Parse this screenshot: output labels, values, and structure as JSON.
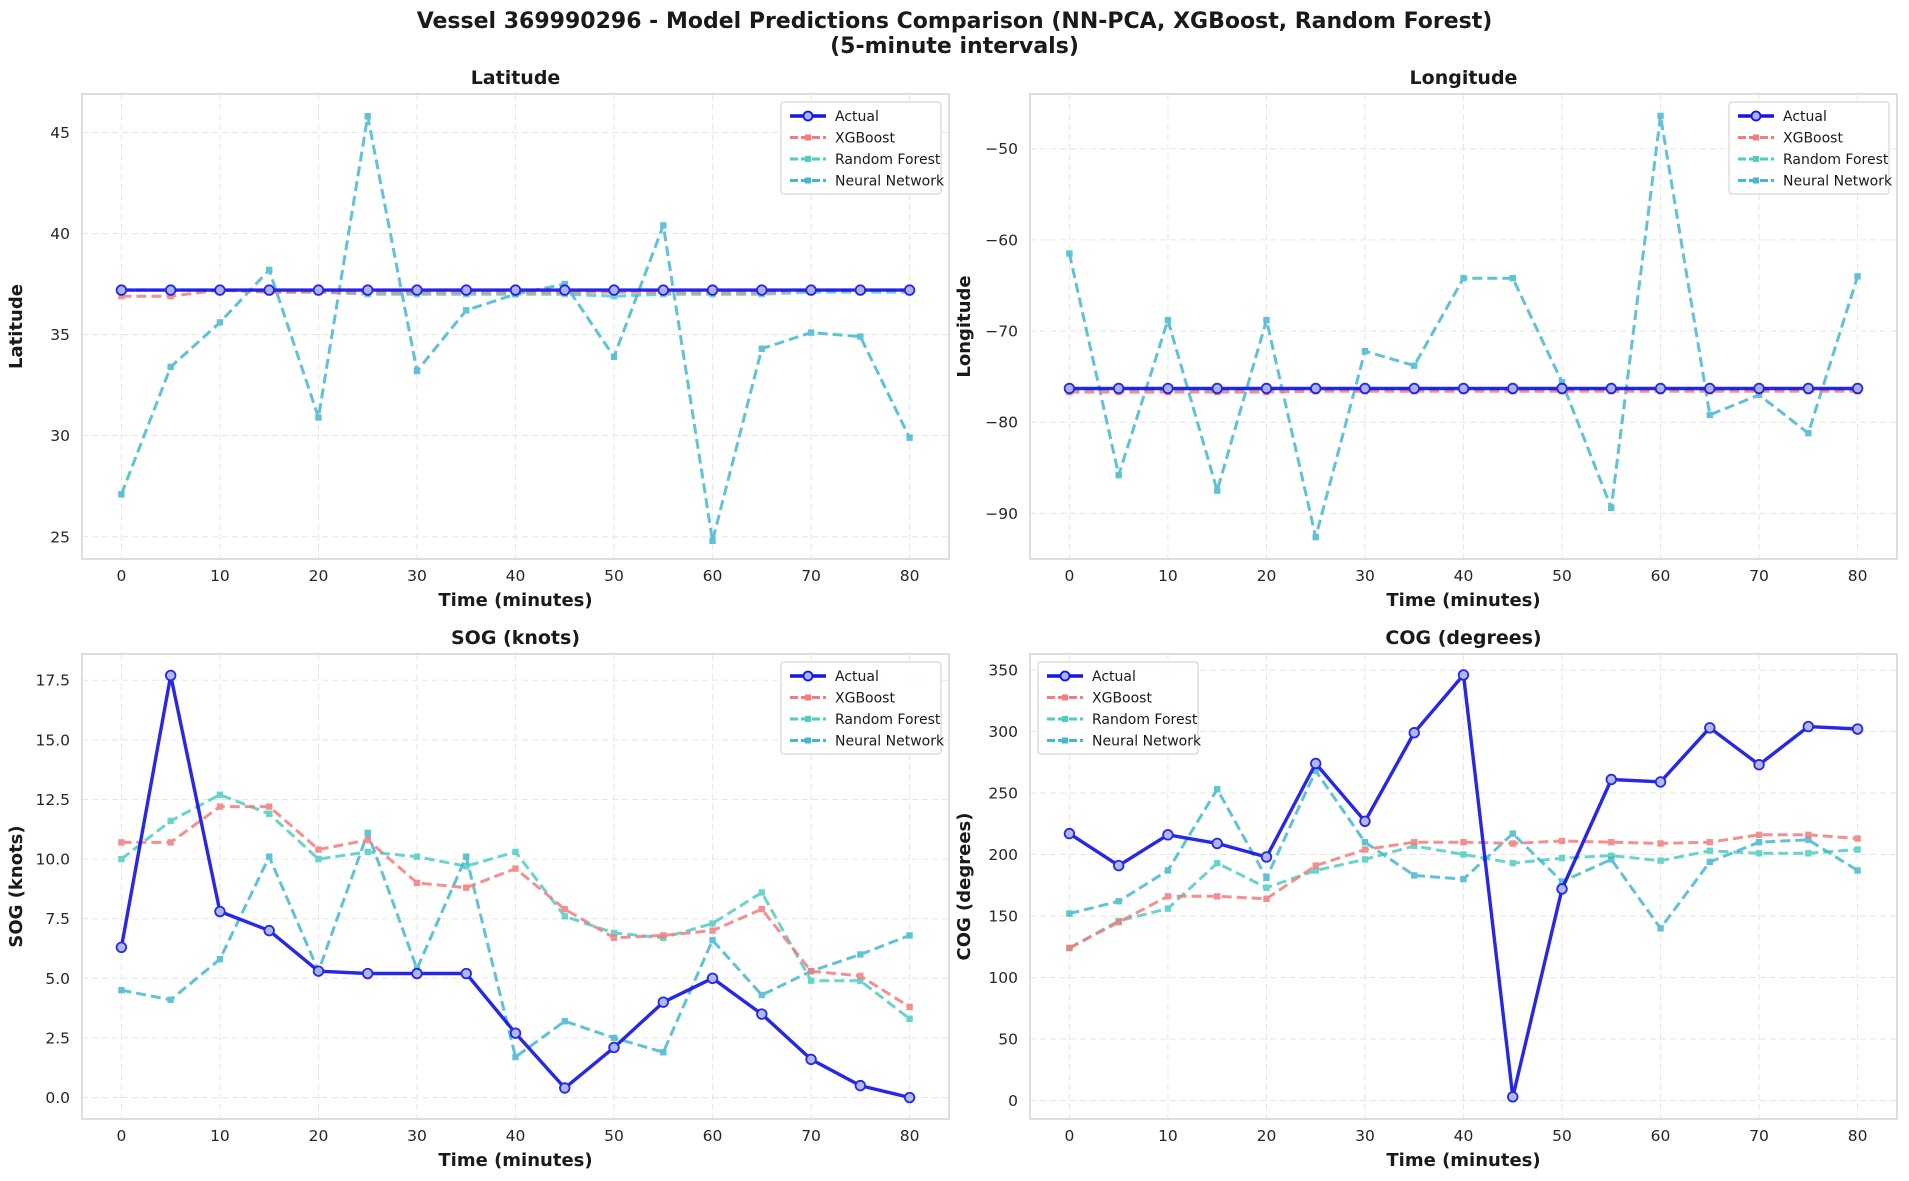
{
  "figure": {
    "title_line1": "Vessel 369990296 - Model Predictions Comparison (NN-PCA, XGBoost, Random Forest)",
    "title_line2": "(5-minute intervals)"
  },
  "colors": {
    "actual": "#1515e8",
    "xgboost": "#f47c7c",
    "random_forest": "#4ecdc4",
    "neural_network": "#45b7d1",
    "grid": "#e6e6e6",
    "axis": "#cccccc"
  },
  "chart_data": [
    {
      "type": "line",
      "title": "Latitude",
      "xlabel": "Time (minutes)",
      "ylabel": "Latitude",
      "x": [
        0,
        5,
        10,
        15,
        20,
        25,
        30,
        35,
        40,
        45,
        50,
        55,
        60,
        65,
        70,
        75,
        80
      ],
      "xlim": [
        -4,
        84
      ],
      "ylim": [
        23.9,
        46.9
      ],
      "xticks": [
        0,
        10,
        20,
        30,
        40,
        50,
        60,
        70,
        80
      ],
      "yticks": [
        25,
        30,
        35,
        40,
        45
      ],
      "grid": true,
      "legend": "top-right",
      "series": [
        {
          "name": "Actual",
          "values": [
            37.2,
            37.2,
            37.2,
            37.2,
            37.2,
            37.2,
            37.2,
            37.2,
            37.2,
            37.2,
            37.2,
            37.2,
            37.2,
            37.2,
            37.2,
            37.2,
            37.2
          ]
        },
        {
          "name": "XGBoost",
          "values": [
            36.9,
            36.9,
            37.2,
            37.1,
            37.1,
            37.1,
            37.1,
            37.1,
            37.1,
            37.1,
            37.1,
            37.1,
            37.1,
            37.1,
            37.2,
            37.2,
            37.2
          ]
        },
        {
          "name": "Random Forest",
          "values": [
            37.2,
            37.2,
            37.2,
            37.1,
            37.1,
            37.0,
            37.0,
            37.0,
            37.0,
            37.0,
            36.9,
            37.0,
            37.0,
            37.0,
            37.1,
            37.1,
            37.1
          ]
        },
        {
          "name": "Neural Network",
          "values": [
            27.1,
            33.4,
            35.6,
            38.2,
            30.9,
            45.8,
            33.2,
            36.2,
            37.0,
            37.5,
            33.9,
            40.4,
            24.8,
            34.3,
            35.1,
            34.9,
            29.9
          ]
        }
      ]
    },
    {
      "type": "line",
      "title": "Longitude",
      "xlabel": "Time (minutes)",
      "ylabel": "Longitude",
      "x": [
        0,
        5,
        10,
        15,
        20,
        25,
        30,
        35,
        40,
        45,
        50,
        55,
        60,
        65,
        70,
        75,
        80
      ],
      "xlim": [
        -4,
        84
      ],
      "ylim": [
        -95,
        -44
      ],
      "xticks": [
        0,
        10,
        20,
        30,
        40,
        50,
        60,
        70,
        80
      ],
      "yticks": [
        -90,
        -80,
        -70,
        -60,
        -50
      ],
      "grid": true,
      "legend": "top-right",
      "series": [
        {
          "name": "Actual",
          "values": [
            -76.3,
            -76.3,
            -76.3,
            -76.3,
            -76.3,
            -76.3,
            -76.3,
            -76.3,
            -76.3,
            -76.3,
            -76.3,
            -76.3,
            -76.3,
            -76.3,
            -76.3,
            -76.3,
            -76.3
          ]
        },
        {
          "name": "XGBoost",
          "values": [
            -76.7,
            -76.7,
            -76.7,
            -76.7,
            -76.7,
            -76.6,
            -76.6,
            -76.6,
            -76.6,
            -76.6,
            -76.6,
            -76.6,
            -76.6,
            -76.6,
            -76.6,
            -76.6,
            -76.6
          ]
        },
        {
          "name": "Random Forest",
          "values": [
            -76.4,
            -76.4,
            -76.4,
            -76.4,
            -76.4,
            -76.4,
            -76.4,
            -76.4,
            -76.4,
            -76.4,
            -76.4,
            -76.4,
            -76.4,
            -76.4,
            -76.4,
            -76.4,
            -76.4
          ]
        },
        {
          "name": "Neural Network",
          "values": [
            -61.5,
            -85.8,
            -68.8,
            -87.5,
            -68.8,
            -92.6,
            -72.2,
            -73.8,
            -64.2,
            -64.2,
            -75.6,
            -89.4,
            -46.4,
            -79.2,
            -77.0,
            -81.2,
            -64.0
          ]
        }
      ]
    },
    {
      "type": "line",
      "title": "SOG (knots)",
      "xlabel": "Time (minutes)",
      "ylabel": "SOG (knots)",
      "x": [
        0,
        5,
        10,
        15,
        20,
        25,
        30,
        35,
        40,
        45,
        50,
        55,
        60,
        65,
        70,
        75,
        80
      ],
      "xlim": [
        -4,
        84
      ],
      "ylim": [
        -0.9,
        18.6
      ],
      "xticks": [
        0,
        10,
        20,
        30,
        40,
        50,
        60,
        70,
        80
      ],
      "yticks": [
        0.0,
        2.5,
        5.0,
        7.5,
        10.0,
        12.5,
        15.0,
        17.5
      ],
      "ytick_labels": [
        "0.0",
        "2.5",
        "5.0",
        "7.5",
        "10.0",
        "12.5",
        "15.0",
        "17.5"
      ],
      "grid": true,
      "legend": "top-right",
      "series": [
        {
          "name": "Actual",
          "values": [
            6.3,
            17.7,
            7.8,
            7.0,
            5.3,
            5.2,
            5.2,
            5.2,
            2.7,
            0.4,
            2.1,
            4.0,
            5.0,
            3.5,
            1.6,
            0.5,
            0.0
          ]
        },
        {
          "name": "XGBoost",
          "values": [
            10.7,
            10.7,
            12.2,
            12.2,
            10.4,
            10.8,
            9.0,
            8.8,
            9.6,
            7.9,
            6.7,
            6.8,
            7.0,
            7.9,
            5.3,
            5.1,
            3.8
          ]
        },
        {
          "name": "Random Forest",
          "values": [
            10.0,
            11.6,
            12.7,
            11.9,
            10.0,
            10.3,
            10.1,
            9.7,
            10.3,
            7.6,
            6.9,
            6.7,
            7.3,
            8.6,
            4.9,
            4.9,
            3.3
          ]
        },
        {
          "name": "Neural Network",
          "values": [
            4.5,
            4.1,
            5.8,
            10.1,
            5.3,
            11.1,
            5.4,
            10.1,
            1.7,
            3.2,
            2.5,
            1.9,
            6.6,
            4.3,
            5.3,
            6.0,
            6.8
          ]
        }
      ]
    },
    {
      "type": "line",
      "title": "COG (degrees)",
      "xlabel": "Time (minutes)",
      "ylabel": "COG (degrees)",
      "x": [
        0,
        5,
        10,
        15,
        20,
        25,
        30,
        35,
        40,
        45,
        50,
        55,
        60,
        65,
        70,
        75,
        80
      ],
      "xlim": [
        -4,
        84
      ],
      "ylim": [
        -15,
        363
      ],
      "xticks": [
        0,
        10,
        20,
        30,
        40,
        50,
        60,
        70,
        80
      ],
      "yticks": [
        0,
        50,
        100,
        150,
        200,
        250,
        300,
        350
      ],
      "grid": true,
      "legend": "top-left",
      "series": [
        {
          "name": "Actual",
          "values": [
            217,
            191,
            216,
            209,
            198,
            274,
            227,
            299,
            346,
            3,
            172,
            261,
            259,
            303,
            273,
            304,
            302
          ]
        },
        {
          "name": "XGBoost",
          "values": [
            124,
            145,
            166,
            166,
            164,
            191,
            204,
            210,
            210,
            209,
            211,
            210,
            209,
            210,
            216,
            216,
            213
          ]
        },
        {
          "name": "Random Forest",
          "values": [
            124,
            146,
            156,
            193,
            173,
            187,
            196,
            207,
            200,
            193,
            197,
            199,
            195,
            203,
            201,
            201,
            204
          ]
        },
        {
          "name": "Neural Network",
          "values": [
            152,
            162,
            187,
            253,
            181,
            268,
            210,
            183,
            180,
            217,
            178,
            196,
            140,
            194,
            210,
            212,
            187
          ]
        }
      ]
    }
  ]
}
